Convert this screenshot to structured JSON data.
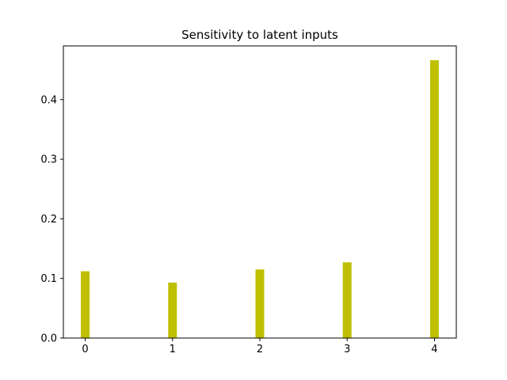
{
  "chart_data": {
    "type": "bar",
    "title": "Sensitivity to latent inputs",
    "xlabel": "",
    "ylabel": "",
    "categories": [
      "0",
      "1",
      "2",
      "3",
      "4"
    ],
    "x": [
      0,
      1,
      2,
      3,
      4
    ],
    "values": [
      0.112,
      0.093,
      0.115,
      0.127,
      0.466
    ],
    "xlim": [
      -0.25,
      4.25
    ],
    "ylim": [
      0,
      0.49
    ],
    "yticks": [
      0.0,
      0.1,
      0.2,
      0.3,
      0.4
    ],
    "ytick_labels": [
      "0.0",
      "0.1",
      "0.2",
      "0.3",
      "0.4"
    ],
    "bar_color": "#bfbf00",
    "grid": false,
    "legend": "none"
  }
}
